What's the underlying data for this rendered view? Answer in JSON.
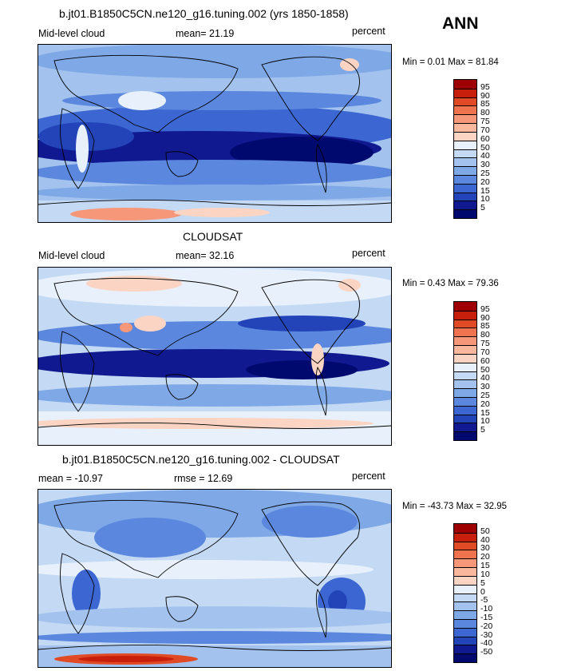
{
  "season": "ANN",
  "panels": [
    {
      "title": "b.jt01.B1850C5CN.ne120_g16.tuning.002 (yrs 1850-1858)",
      "left_label": "Mid-level cloud",
      "center_label": "mean=  21.19",
      "right_label": "percent",
      "min_max": "Min =   0.01 Max =  81.84",
      "levels": [
        "95",
        "90",
        "85",
        "80",
        "75",
        "70",
        "60",
        "50",
        "40",
        "30",
        "25",
        "20",
        "15",
        "10",
        "5"
      ],
      "colors": [
        "#9e0000",
        "#c81e0c",
        "#e04a24",
        "#f07350",
        "#f6977a",
        "#f9b79e",
        "#fbd4c3",
        "#e8f1fb",
        "#c3d9f4",
        "#a3c3ee",
        "#7fa8e6",
        "#5b88de",
        "#3c66d2",
        "#2244b8",
        "#10198f",
        "#000a6e"
      ]
    },
    {
      "title": "CLOUDSAT",
      "left_label": "Mid-level cloud",
      "center_label": "mean=  32.16",
      "right_label": "percent",
      "min_max": "Min =   0.43 Max =  79.36",
      "levels": [
        "95",
        "90",
        "85",
        "80",
        "75",
        "70",
        "60",
        "50",
        "40",
        "30",
        "25",
        "20",
        "15",
        "10",
        "5"
      ],
      "colors": [
        "#9e0000",
        "#c81e0c",
        "#e04a24",
        "#f07350",
        "#f6977a",
        "#f9b79e",
        "#fbd4c3",
        "#e8f1fb",
        "#c3d9f4",
        "#a3c3ee",
        "#7fa8e6",
        "#5b88de",
        "#3c66d2",
        "#2244b8",
        "#10198f",
        "#000a6e"
      ]
    },
    {
      "title": "b.jt01.B1850C5CN.ne120_g16.tuning.002 - CLOUDSAT",
      "left_label": "mean = -10.97",
      "center_label": "rmse =  12.69",
      "right_label": "percent",
      "min_max": "Min = -43.73 Max =  32.95",
      "levels": [
        "50",
        "40",
        "30",
        "20",
        "15",
        "10",
        "5",
        "0",
        "-5",
        "-10",
        "-15",
        "-20",
        "-30",
        "-40",
        "-50"
      ],
      "colors": [
        "#9e0000",
        "#c81e0c",
        "#e04a24",
        "#f07350",
        "#f6977a",
        "#f9b79e",
        "#fbd4c3",
        "#e8f1fb",
        "#c3d9f4",
        "#a3c3ee",
        "#7fa8e6",
        "#5b88de",
        "#3c66d2",
        "#2244b8",
        "#10198f",
        "#000a6e"
      ]
    }
  ],
  "chart_data": [
    {
      "type": "heatmap",
      "title": "b.jt01.B1850C5CN.ne120_g16.tuning.002 (yrs 1850-1858)",
      "subtitle": "Mid-level cloud",
      "units": "percent",
      "mean": 21.19,
      "min": 0.01,
      "max": 81.84,
      "contour_levels": [
        5,
        10,
        15,
        20,
        25,
        30,
        40,
        50,
        60,
        70,
        75,
        80,
        85,
        90,
        95
      ]
    },
    {
      "type": "heatmap",
      "title": "CLOUDSAT",
      "subtitle": "Mid-level cloud",
      "units": "percent",
      "mean": 32.16,
      "min": 0.43,
      "max": 79.36,
      "contour_levels": [
        5,
        10,
        15,
        20,
        25,
        30,
        40,
        50,
        60,
        70,
        75,
        80,
        85,
        90,
        95
      ]
    },
    {
      "type": "heatmap",
      "title": "b.jt01.B1850C5CN.ne120_g16.tuning.002 - CLOUDSAT",
      "units": "percent",
      "mean": -10.97,
      "rmse": 12.69,
      "min": -43.73,
      "max": 32.95,
      "contour_levels": [
        -50,
        -40,
        -30,
        -20,
        -15,
        -10,
        -5,
        0,
        5,
        10,
        15,
        20,
        30,
        40,
        50
      ]
    }
  ]
}
